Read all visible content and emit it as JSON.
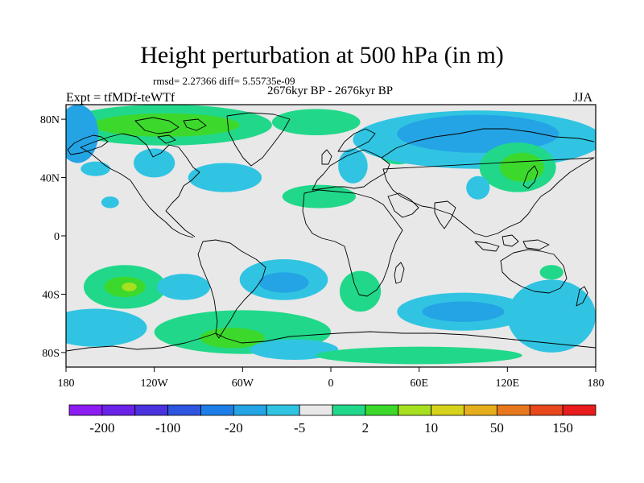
{
  "title": "Height perturbation at 500 hPa (in m)",
  "stats": "rmsd= 2.27366 diff= 5.55735e-09",
  "period": "2676kyr BP - 2676kyr BP",
  "experiment": "Expt = tfMDf-teWTf",
  "season": "JJA",
  "map": {
    "lon_range": [
      -180,
      180
    ],
    "lat_range": [
      -90,
      90
    ],
    "lat_ticks": [
      {
        "value": 80,
        "label": "80N"
      },
      {
        "value": 40,
        "label": "40N"
      },
      {
        "value": 0,
        "label": "0"
      },
      {
        "value": -40,
        "label": "40S"
      },
      {
        "value": -80,
        "label": "80S"
      }
    ],
    "lon_ticks": [
      {
        "value": -180,
        "label": "180"
      },
      {
        "value": -120,
        "label": "120W"
      },
      {
        "value": -60,
        "label": "60W"
      },
      {
        "value": 0,
        "label": "0"
      },
      {
        "value": 60,
        "label": "60E"
      },
      {
        "value": 120,
        "label": "120E"
      },
      {
        "value": 180,
        "label": "180"
      }
    ],
    "background_color": "#e8e8e8",
    "coastline_color": "#000000"
  },
  "colorbar": {
    "colors": [
      "#8c1cf2",
      "#6a21e8",
      "#4a32de",
      "#2e55e0",
      "#1c7ee6",
      "#24a4e4",
      "#30c4e2",
      "#e8e8e8",
      "#21d88a",
      "#3cd82c",
      "#a6e01e",
      "#d6d21c",
      "#e4ae1c",
      "#e8781e",
      "#e8481c",
      "#e81c1c"
    ],
    "labels": [
      {
        "index": 1,
        "text": "-200"
      },
      {
        "index": 3,
        "text": "-100"
      },
      {
        "index": 5,
        "text": "-20"
      },
      {
        "index": 7,
        "text": "-5"
      },
      {
        "index": 9,
        "text": "2"
      },
      {
        "index": 11,
        "text": "10"
      },
      {
        "index": 13,
        "text": "50"
      },
      {
        "index": 15,
        "text": "150"
      }
    ]
  },
  "anomalies": [
    {
      "lon": -112,
      "lat": 76,
      "rlon": 72,
      "rlat": 14,
      "color": "#21d88a"
    },
    {
      "lon": -112,
      "lat": 76,
      "rlon": 50,
      "rlat": 8,
      "color": "#3cd82c"
    },
    {
      "lon": -172,
      "lat": 70,
      "rlon": 14,
      "rlat": 20,
      "color": "#24a4e4"
    },
    {
      "lon": -10,
      "lat": 78,
      "rlon": 30,
      "rlat": 9,
      "color": "#21d88a"
    },
    {
      "lon": -120,
      "lat": 50,
      "rlon": 14,
      "rlat": 10,
      "color": "#30c4e2"
    },
    {
      "lon": -72,
      "lat": 40,
      "rlon": 25,
      "rlat": 10,
      "color": "#30c4e2"
    },
    {
      "lon": -160,
      "lat": 46,
      "rlon": 10,
      "rlat": 5,
      "color": "#30c4e2"
    },
    {
      "lon": -150,
      "lat": 23,
      "rlon": 6,
      "rlat": 4,
      "color": "#30c4e2"
    },
    {
      "lon": 15,
      "lat": 48,
      "rlon": 10,
      "rlat": 12,
      "color": "#30c4e2"
    },
    {
      "lon": 46,
      "lat": 58,
      "rlon": 14,
      "rlat": 9,
      "color": "#21d88a"
    },
    {
      "lon": 100,
      "lat": 66,
      "rlon": 85,
      "rlat": 20,
      "color": "#30c4e2"
    },
    {
      "lon": 100,
      "lat": 70,
      "rlon": 55,
      "rlat": 13,
      "color": "#24a4e4"
    },
    {
      "lon": 127,
      "lat": 47,
      "rlon": 26,
      "rlat": 17,
      "color": "#21d88a"
    },
    {
      "lon": 130,
      "lat": 47,
      "rlon": 15,
      "rlat": 10,
      "color": "#3cd82c"
    },
    {
      "lon": 100,
      "lat": 33,
      "rlon": 8,
      "rlat": 8,
      "color": "#30c4e2"
    },
    {
      "lon": -8,
      "lat": 27,
      "rlon": 25,
      "rlat": 8,
      "color": "#21d88a"
    },
    {
      "lon": 150,
      "lat": -25,
      "rlon": 8,
      "rlat": 5,
      "color": "#21d88a"
    },
    {
      "lon": -140,
      "lat": -35,
      "rlon": 28,
      "rlat": 15,
      "color": "#21d88a"
    },
    {
      "lon": -140,
      "lat": -35,
      "rlon": 14,
      "rlat": 7,
      "color": "#3cd82c"
    },
    {
      "lon": -137,
      "lat": -35,
      "rlon": 5,
      "rlat": 3,
      "color": "#a6e01e"
    },
    {
      "lon": -100,
      "lat": -35,
      "rlon": 18,
      "rlat": 9,
      "color": "#30c4e2"
    },
    {
      "lon": -32,
      "lat": -30,
      "rlon": 30,
      "rlat": 14,
      "color": "#30c4e2"
    },
    {
      "lon": -32,
      "lat": -32,
      "rlon": 17,
      "rlat": 7,
      "color": "#24a4e4"
    },
    {
      "lon": 20,
      "lat": -38,
      "rlon": 14,
      "rlat": 14,
      "color": "#21d88a"
    },
    {
      "lon": 90,
      "lat": -52,
      "rlon": 45,
      "rlat": 13,
      "color": "#30c4e2"
    },
    {
      "lon": 90,
      "lat": -52,
      "rlon": 28,
      "rlat": 7,
      "color": "#24a4e4"
    },
    {
      "lon": 150,
      "lat": -55,
      "rlon": 30,
      "rlat": 25,
      "color": "#30c4e2"
    },
    {
      "lon": -160,
      "lat": -63,
      "rlon": 35,
      "rlat": 13,
      "color": "#30c4e2"
    },
    {
      "lon": -60,
      "lat": -66,
      "rlon": 60,
      "rlat": 15,
      "color": "#21d88a"
    },
    {
      "lon": -67,
      "lat": -70,
      "rlon": 22,
      "rlat": 7,
      "color": "#3cd82c"
    },
    {
      "lon": -25,
      "lat": -78,
      "rlon": 30,
      "rlat": 7,
      "color": "#30c4e2"
    },
    {
      "lon": 60,
      "lat": -82,
      "rlon": 70,
      "rlat": 6,
      "color": "#21d88a"
    }
  ]
}
